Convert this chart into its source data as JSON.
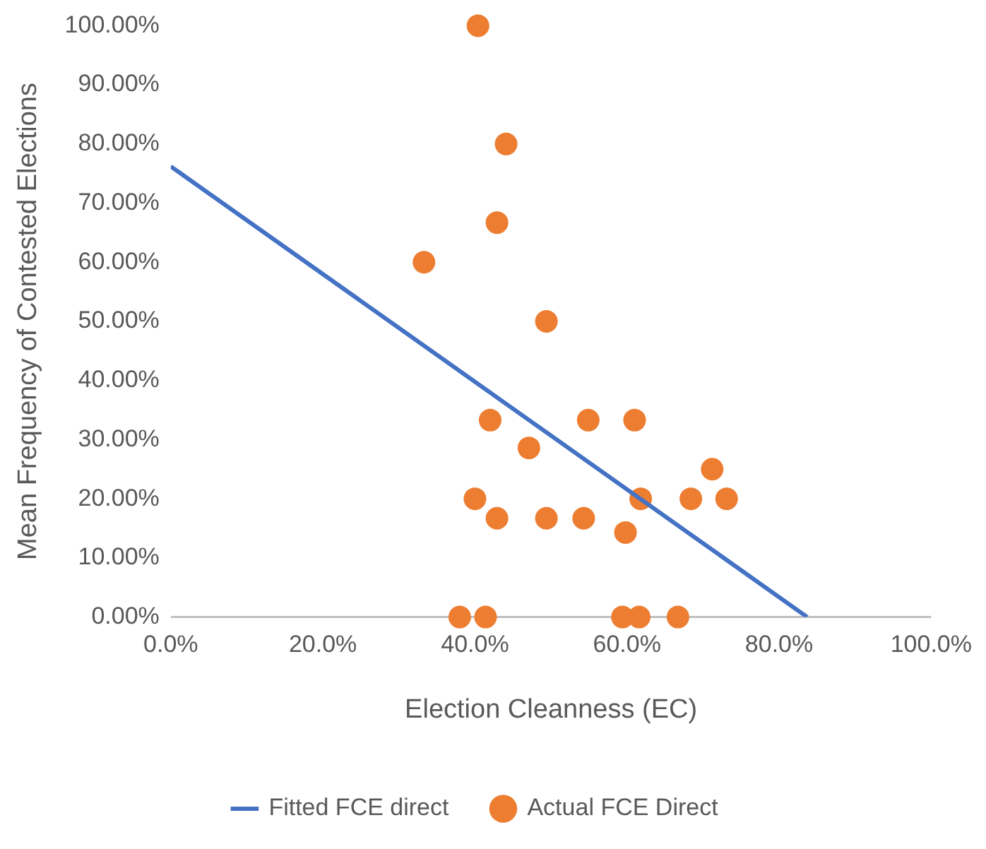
{
  "chart_data": {
    "type": "scatter",
    "xlabel": "Election Cleanness (EC)",
    "ylabel": "Mean Frequency of Contested Elections",
    "xlim": [
      0,
      100
    ],
    "xticks": [
      {
        "value": 0,
        "label": "0.0%"
      },
      {
        "value": 20,
        "label": "20.0%"
      },
      {
        "value": 40,
        "label": "40.0%"
      },
      {
        "value": 60,
        "label": "60.0%"
      },
      {
        "value": 80,
        "label": "80.0%"
      },
      {
        "value": 100,
        "label": "100.0%"
      }
    ],
    "ylim": [
      0,
      100
    ],
    "yticks": [
      {
        "value": 0,
        "label": "0.00%"
      },
      {
        "value": 10,
        "label": "10.00%"
      },
      {
        "value": 20,
        "label": "20.00%"
      },
      {
        "value": 30,
        "label": "30.00%"
      },
      {
        "value": 40,
        "label": "40.00%"
      },
      {
        "value": 50,
        "label": "50.00%"
      },
      {
        "value": 60,
        "label": "60.00%"
      },
      {
        "value": 70,
        "label": "70.00%"
      },
      {
        "value": 80,
        "label": "80.00%"
      },
      {
        "value": 90,
        "label": "90.00%"
      },
      {
        "value": 100,
        "label": "100.00%"
      }
    ],
    "grid": false,
    "legend": "bottom",
    "series": [
      {
        "name": "Fitted FCE direct",
        "type": "line",
        "marker": "none",
        "color": "#4472c4",
        "x": [
          0,
          83.7
        ],
        "values": [
          76.2,
          0
        ]
      },
      {
        "name": "Actual FCE Direct",
        "type": "scatter",
        "marker": "circle",
        "color": "#ed7d31",
        "x": [
          40.4,
          44.1,
          42.9,
          33.3,
          49.4,
          42,
          54.9,
          61,
          47.1,
          71.2,
          40,
          61.8,
          68.4,
          73.1,
          42.9,
          49.4,
          54.3,
          59.8,
          38,
          41.4,
          59.4,
          61.6,
          66.7
        ],
        "values": [
          100,
          80,
          66.7,
          60,
          50,
          33.3,
          33.3,
          33.3,
          28.6,
          25,
          20,
          20,
          20,
          20,
          16.7,
          16.7,
          16.7,
          14.3,
          0,
          0,
          0,
          0,
          0
        ]
      }
    ]
  }
}
